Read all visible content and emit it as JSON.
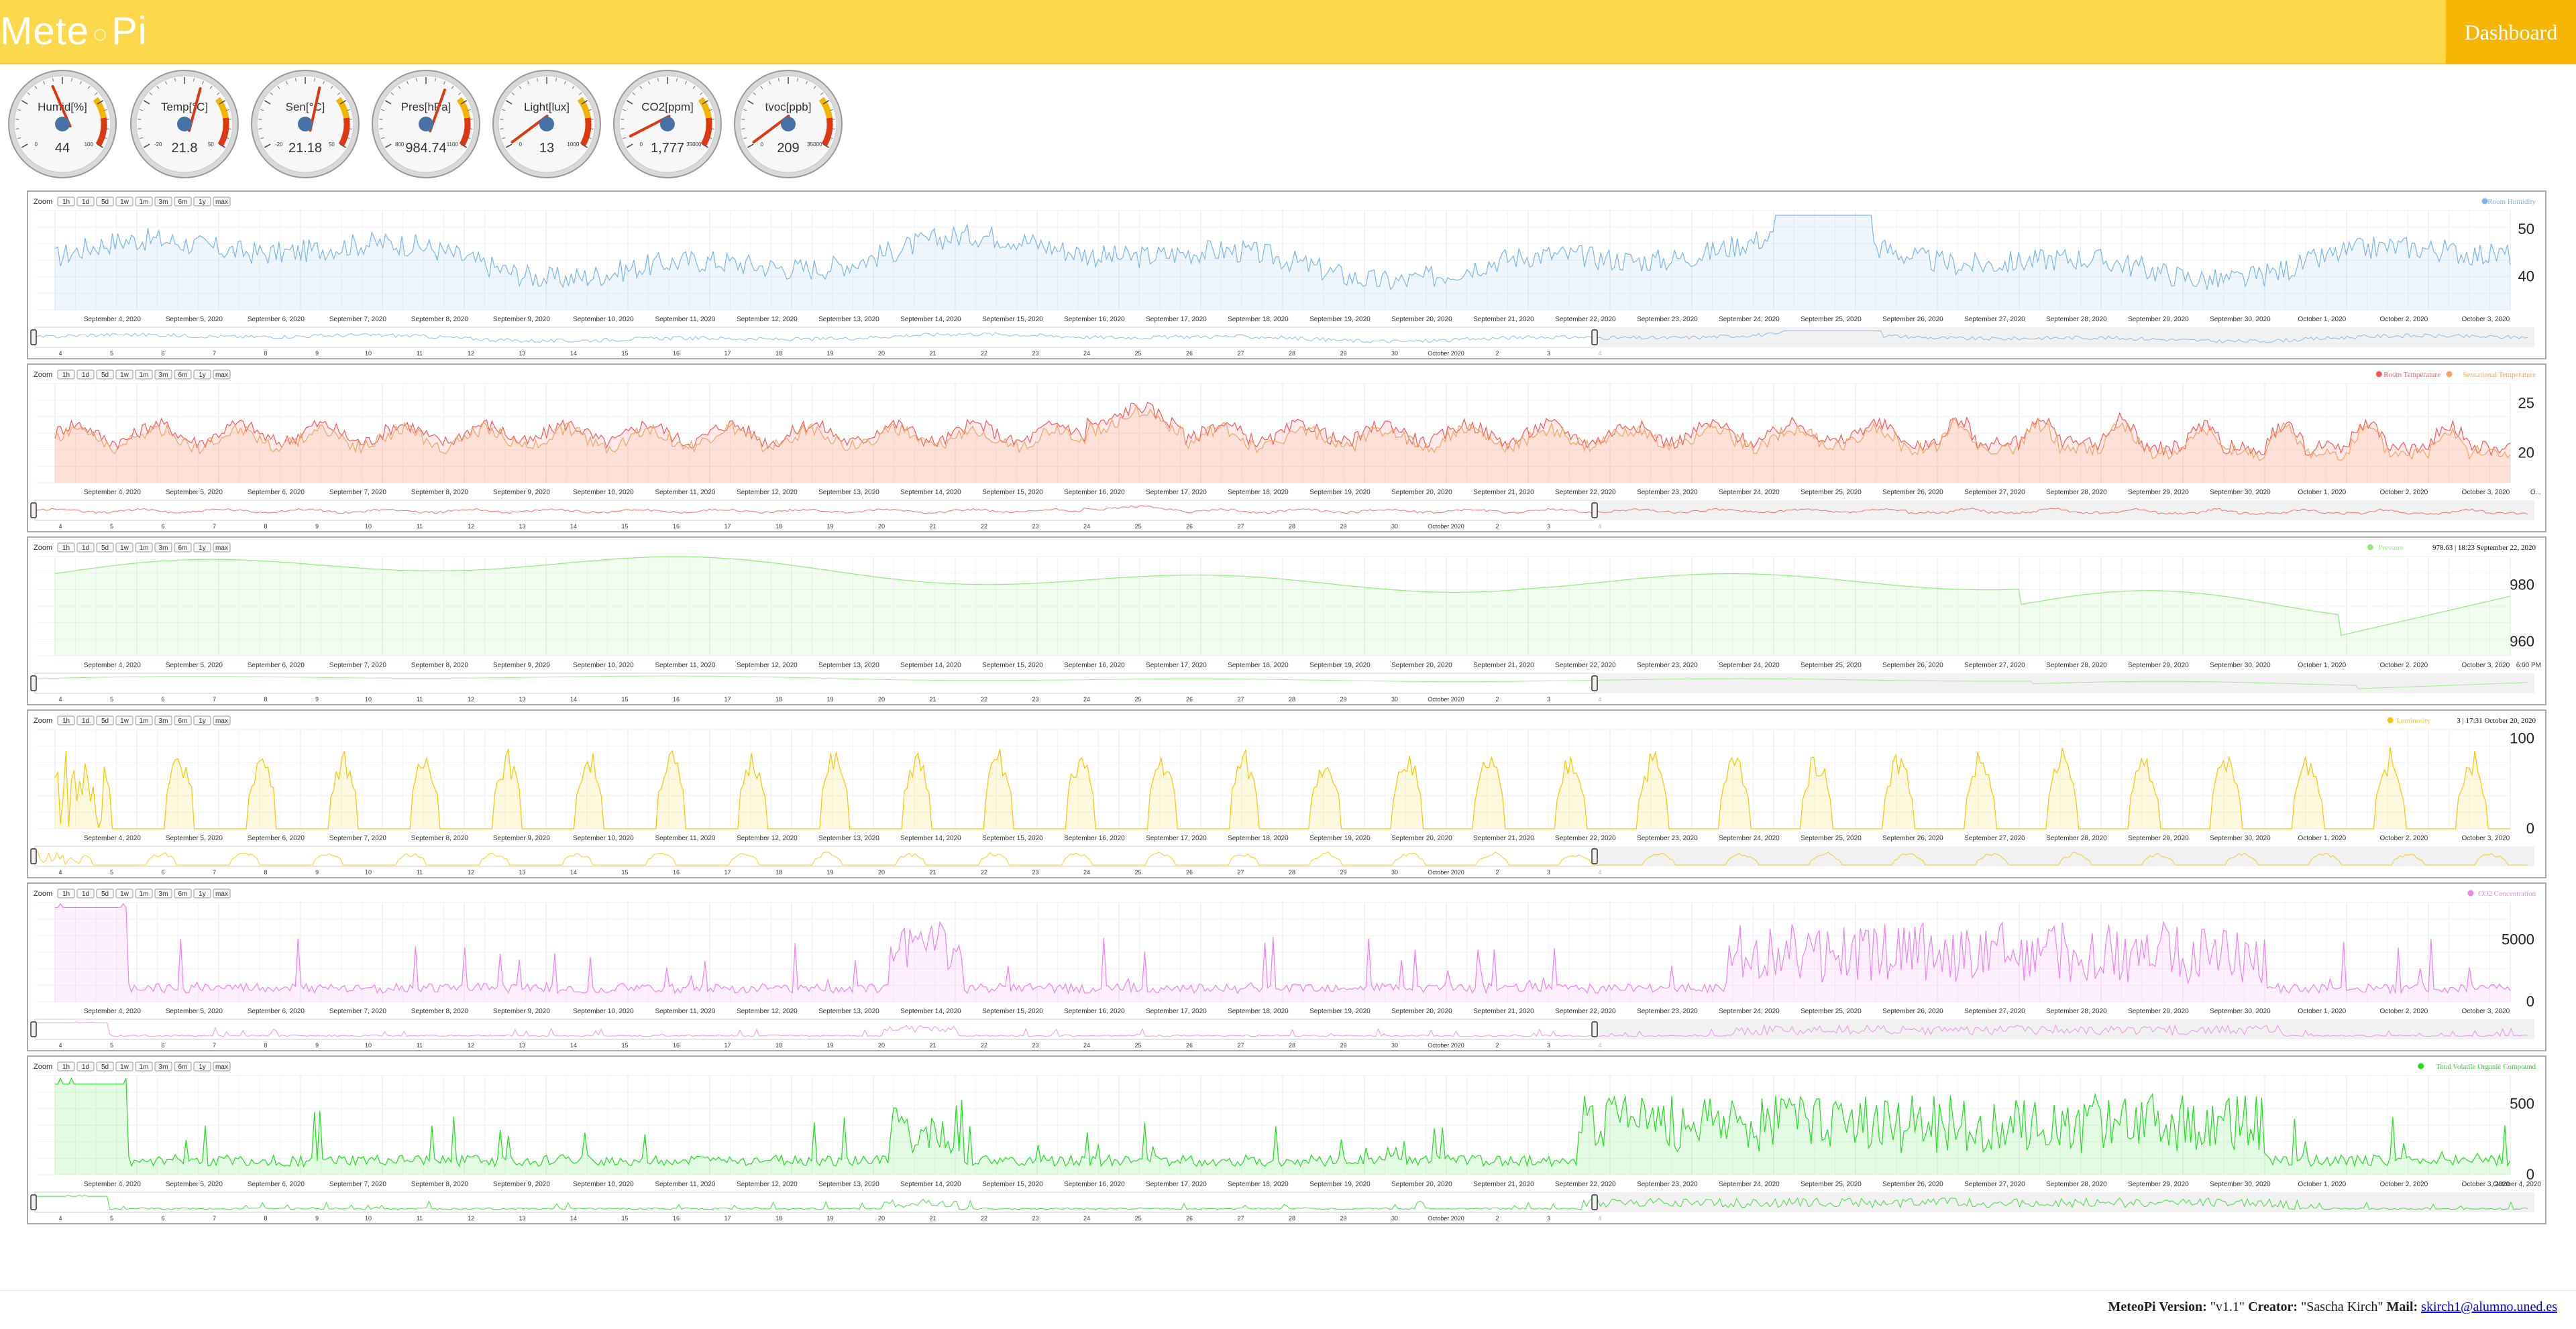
{
  "header": {
    "logo_left": "Mete",
    "logo_dot": "○",
    "logo_right": "Pi",
    "dashboard_label": "Dashboard"
  },
  "gauges": [
    {
      "label": "Humid[%]",
      "value": "44",
      "min": "0",
      "max": "100",
      "fraction": 0.44
    },
    {
      "label": "Temp[°C]",
      "value": "21.8",
      "min": "-20",
      "max": "50",
      "fraction": 0.6
    },
    {
      "label": "Sen[°C]",
      "value": "21.18",
      "min": "-20",
      "max": "50",
      "fraction": 0.59
    },
    {
      "label": "Pres[hPa]",
      "value": "984.74",
      "min": "800",
      "max": "1100",
      "fraction": 0.62
    },
    {
      "label": "Light[lux]",
      "value": "13",
      "min": "0",
      "max": "1000",
      "fraction": 0.01
    },
    {
      "label": "CO2[ppm]",
      "value": "1,777",
      "min": "0",
      "max": "35000",
      "fraction": 0.05
    },
    {
      "label": "tvoc[ppb]",
      "value": "209",
      "min": "0",
      "max": "35000",
      "fraction": 0.01
    }
  ],
  "zoom_label": "Zoom",
  "zoom_buttons": [
    "1h",
    "1d",
    "5d",
    "1w",
    "1m",
    "3m",
    "6m",
    "1y",
    "max"
  ],
  "x_dates": [
    "September 4, 2020",
    "September 5, 2020",
    "September 6, 2020",
    "September 7, 2020",
    "September 8, 2020",
    "September 9, 2020",
    "September 10, 2020",
    "September 11, 2020",
    "September 12, 2020",
    "September 13, 2020",
    "September 14, 2020",
    "September 15, 2020",
    "September 16, 2020",
    "September 17, 2020",
    "September 18, 2020",
    "September 19, 2020",
    "September 20, 2020",
    "September 21, 2020",
    "September 22, 2020",
    "September 23, 2020",
    "September 24, 2020",
    "September 25, 2020",
    "September 26, 2020",
    "September 27, 2020",
    "September 28, 2020",
    "September 29, 2020",
    "September 30, 2020",
    "October 1, 2020",
    "October 2, 2020",
    "October 3, 2020"
  ],
  "navigator_ticks": [
    "4",
    "5",
    "6",
    "7",
    "8",
    "9",
    "10",
    "11",
    "12",
    "13",
    "14",
    "15",
    "16",
    "17",
    "18",
    "19",
    "20",
    "21",
    "22",
    "23",
    "24",
    "25",
    "26",
    "27",
    "28",
    "29",
    "30",
    "October 2020",
    "2",
    "3",
    "4"
  ],
  "chart_data": [
    {
      "type": "line",
      "title": "",
      "legend": [
        "Room Humidity"
      ],
      "legend_placement": "top-right",
      "colors": [
        "#7cb5ec"
      ],
      "yticks": [
        "50",
        "40"
      ],
      "ylim": [
        33,
        54
      ],
      "series": [
        {
          "name": "Room Humidity",
          "x_range": [
            "September 4, 2020",
            "October 3, 2020"
          ],
          "y_approx_min": 35,
          "y_approx_max": 53,
          "y_typical": 44
        }
      ]
    },
    {
      "type": "line",
      "title": "",
      "legend": [
        "Room Temperature",
        "Sensational Temperature"
      ],
      "legend_placement": "top-right",
      "colors": [
        "#f45b5b",
        "#f7a35c"
      ],
      "yticks": [
        "25",
        "20"
      ],
      "ylim": [
        17,
        27
      ],
      "x_last_label": "O...",
      "series": [
        {
          "name": "Room Temperature",
          "y_approx_min": 18.5,
          "y_approx_max": 25,
          "y_typical": 21.8
        },
        {
          "name": "Sensational Temperature",
          "y_approx_min": 18,
          "y_approx_max": 24.5,
          "y_typical": 21.2
        }
      ]
    },
    {
      "type": "line",
      "title": "",
      "legend": [
        "Pressure"
      ],
      "tooltip": "978.63 | 18:23 September 22, 2020",
      "legend_placement": "top-right",
      "colors": [
        "#90ed7d"
      ],
      "yticks": [
        "980",
        "960"
      ],
      "ylim": [
        955,
        990
      ],
      "x_last_label": "6:00 PM",
      "series": [
        {
          "name": "Pressure",
          "y_approx_min": 957,
          "y_approx_max": 987,
          "y_typical": 980
        }
      ]
    },
    {
      "type": "area",
      "title": "",
      "legend": [
        "Luminosity"
      ],
      "tooltip": "3 | 17:31 October 20, 2020",
      "legend_placement": "top-right",
      "colors": [
        "#f7c600"
      ],
      "yticks": [
        "100",
        "0"
      ],
      "ylim": [
        0,
        110
      ],
      "series": [
        {
          "name": "Luminosity",
          "pattern": "daily peaks",
          "y_approx_max": 100
        }
      ]
    },
    {
      "type": "area",
      "title": "",
      "legend": [
        "CO2 Concentration"
      ],
      "legend_placement": "top-right",
      "colors": [
        "#ee82ee"
      ],
      "yticks": [
        "5000",
        "0"
      ],
      "ylim": [
        0,
        8000
      ],
      "series": [
        {
          "name": "CO2 Concentration",
          "y_approx_max": 7800,
          "y_typical": 1777
        }
      ]
    },
    {
      "type": "area",
      "title": "",
      "legend": [
        "Total Volatile Organic Compound"
      ],
      "legend_placement": "top-right",
      "colors": [
        "#22dd22"
      ],
      "yticks": [
        "500",
        "0"
      ],
      "ylim": [
        0,
        700
      ],
      "x_last_label": "October 4, 2020",
      "series": [
        {
          "name": "Total Volatile Organic Compound",
          "y_approx_max": 650,
          "y_typical": 209
        }
      ]
    }
  ],
  "footer": {
    "version_label": "MeteoPi Version:",
    "version_value": "\"v1.1\"",
    "creator_label": "Creator:",
    "creator_value": "\"Sascha Kirch\"",
    "mail_label": "Mail:",
    "mail_value": "skirch1@alumno.uned.es"
  }
}
